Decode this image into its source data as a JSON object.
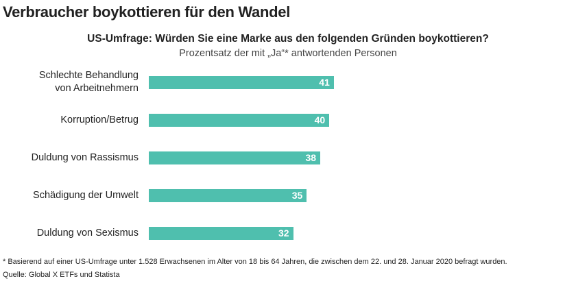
{
  "title": "Verbraucher boykottieren für den Wandel",
  "chart_data": {
    "type": "bar",
    "orientation": "horizontal",
    "title": "US-Umfrage: Würden Sie eine Marke aus den folgenden Gründen boykottieren?",
    "subtitle": "Prozentsatz der mit „Ja“* antwortenden Personen",
    "categories": [
      "Schlechte Behandlung von Arbeitnehmern",
      "Korruption/Betrug",
      "Duldung von Rassismus",
      "Schädigung der Umwelt",
      "Duldung von Sexismus"
    ],
    "category_lines": [
      [
        "Schlechte Behandlung",
        "von Arbeitnehmern"
      ],
      [
        "Korruption/Betrug"
      ],
      [
        "Duldung von Rassismus"
      ],
      [
        "Schädigung der Umwelt"
      ],
      [
        "Duldung von Sexismus"
      ]
    ],
    "values": [
      41,
      40,
      38,
      35,
      32
    ],
    "data_labels": [
      "41",
      "40",
      "38",
      "35",
      "32"
    ],
    "xlim": [
      0,
      100
    ],
    "grid": false,
    "bar_color": "#4fbfae"
  },
  "footnote": "* Basierend auf einer US-Umfrage unter 1.528 Erwachsenen im Alter von 18 bis 64 Jahren, die zwischen dem 22. und 28. Januar 2020 befragt wurden.",
  "source": "Quelle: Global X ETFs und Statista"
}
